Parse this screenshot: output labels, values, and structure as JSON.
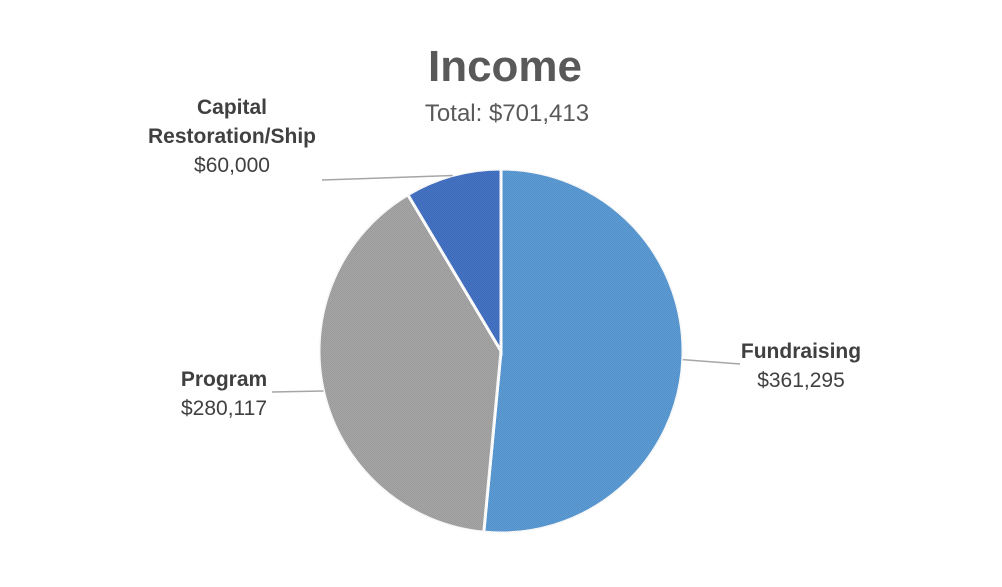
{
  "chart_data": {
    "type": "pie",
    "title": "Income",
    "subtitle": "Total: $701,413",
    "slices": [
      {
        "category": [
          "Fundraising"
        ],
        "value": 361295,
        "value_label": "$361,295",
        "color": "#5B9BD5"
      },
      {
        "category": [
          "Program"
        ],
        "value": 280117,
        "value_label": "$280,117",
        "color": "#A5A5A5"
      },
      {
        "category": [
          "Capital",
          "Restoration/Ship"
        ],
        "value": 60000,
        "value_label": "$60,000",
        "color": "#4472C4"
      }
    ]
  }
}
